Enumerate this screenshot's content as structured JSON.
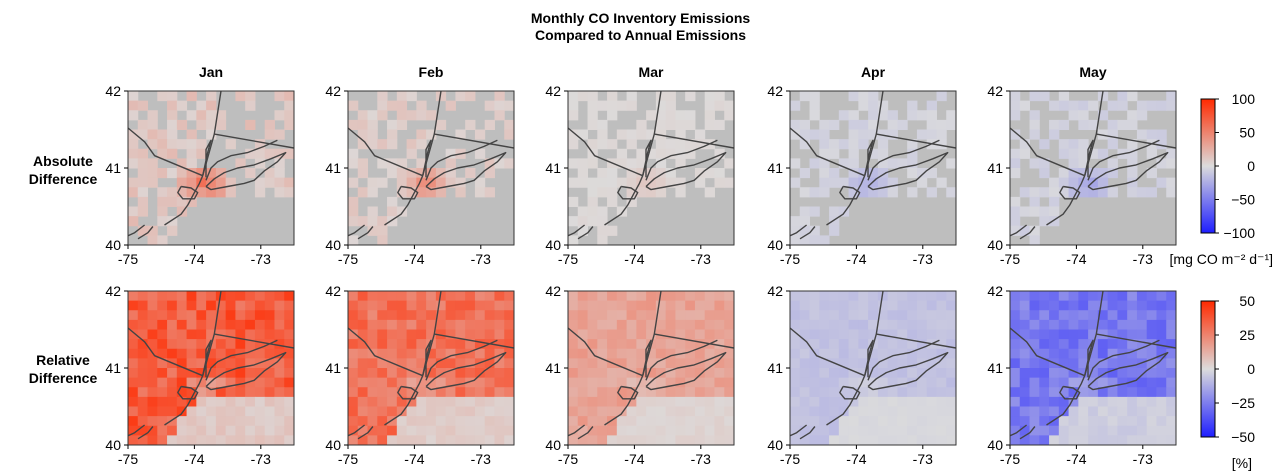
{
  "figure": {
    "title_line1": "Monthly CO Inventory Emissions",
    "title_line2": "Compared to Annual Emissions",
    "row_labels": [
      [
        "Absolute",
        "Difference"
      ],
      [
        "Relative",
        "Difference"
      ]
    ]
  },
  "chart_data": {
    "type": "heatmap",
    "months": [
      "Jan",
      "Feb",
      "Mar",
      "Apr",
      "May"
    ],
    "x_ticks": [
      "-75",
      "-74",
      "-73"
    ],
    "y_ticks": [
      "42",
      "41",
      "40"
    ],
    "xlim": [
      -75,
      -72.5
    ],
    "ylim": [
      40,
      42
    ],
    "rows": [
      {
        "name": "Absolute Difference",
        "colorbar": {
          "min": -100,
          "max": 100,
          "ticks": [
            "100",
            "50",
            "0",
            "−50",
            "−100"
          ],
          "unit_label": "[mg CO m⁻² d⁻¹]"
        },
        "monthly_strength": [
          0.3,
          0.22,
          0.06,
          -0.12,
          -0.14
        ]
      },
      {
        "name": "Relative Difference",
        "colorbar": {
          "min": -50,
          "max": 50,
          "ticks": [
            "50",
            "25",
            "0",
            "−25",
            "−50"
          ],
          "unit_label": "[%]"
        },
        "monthly_strength": [
          0.72,
          0.6,
          0.32,
          -0.14,
          -0.52
        ]
      }
    ],
    "colors": {
      "background": "#bebebe",
      "positive": "#ff2a00",
      "neutral": "#dcdcdc",
      "negative": "#1e1eff",
      "boundary": "#444444"
    }
  }
}
